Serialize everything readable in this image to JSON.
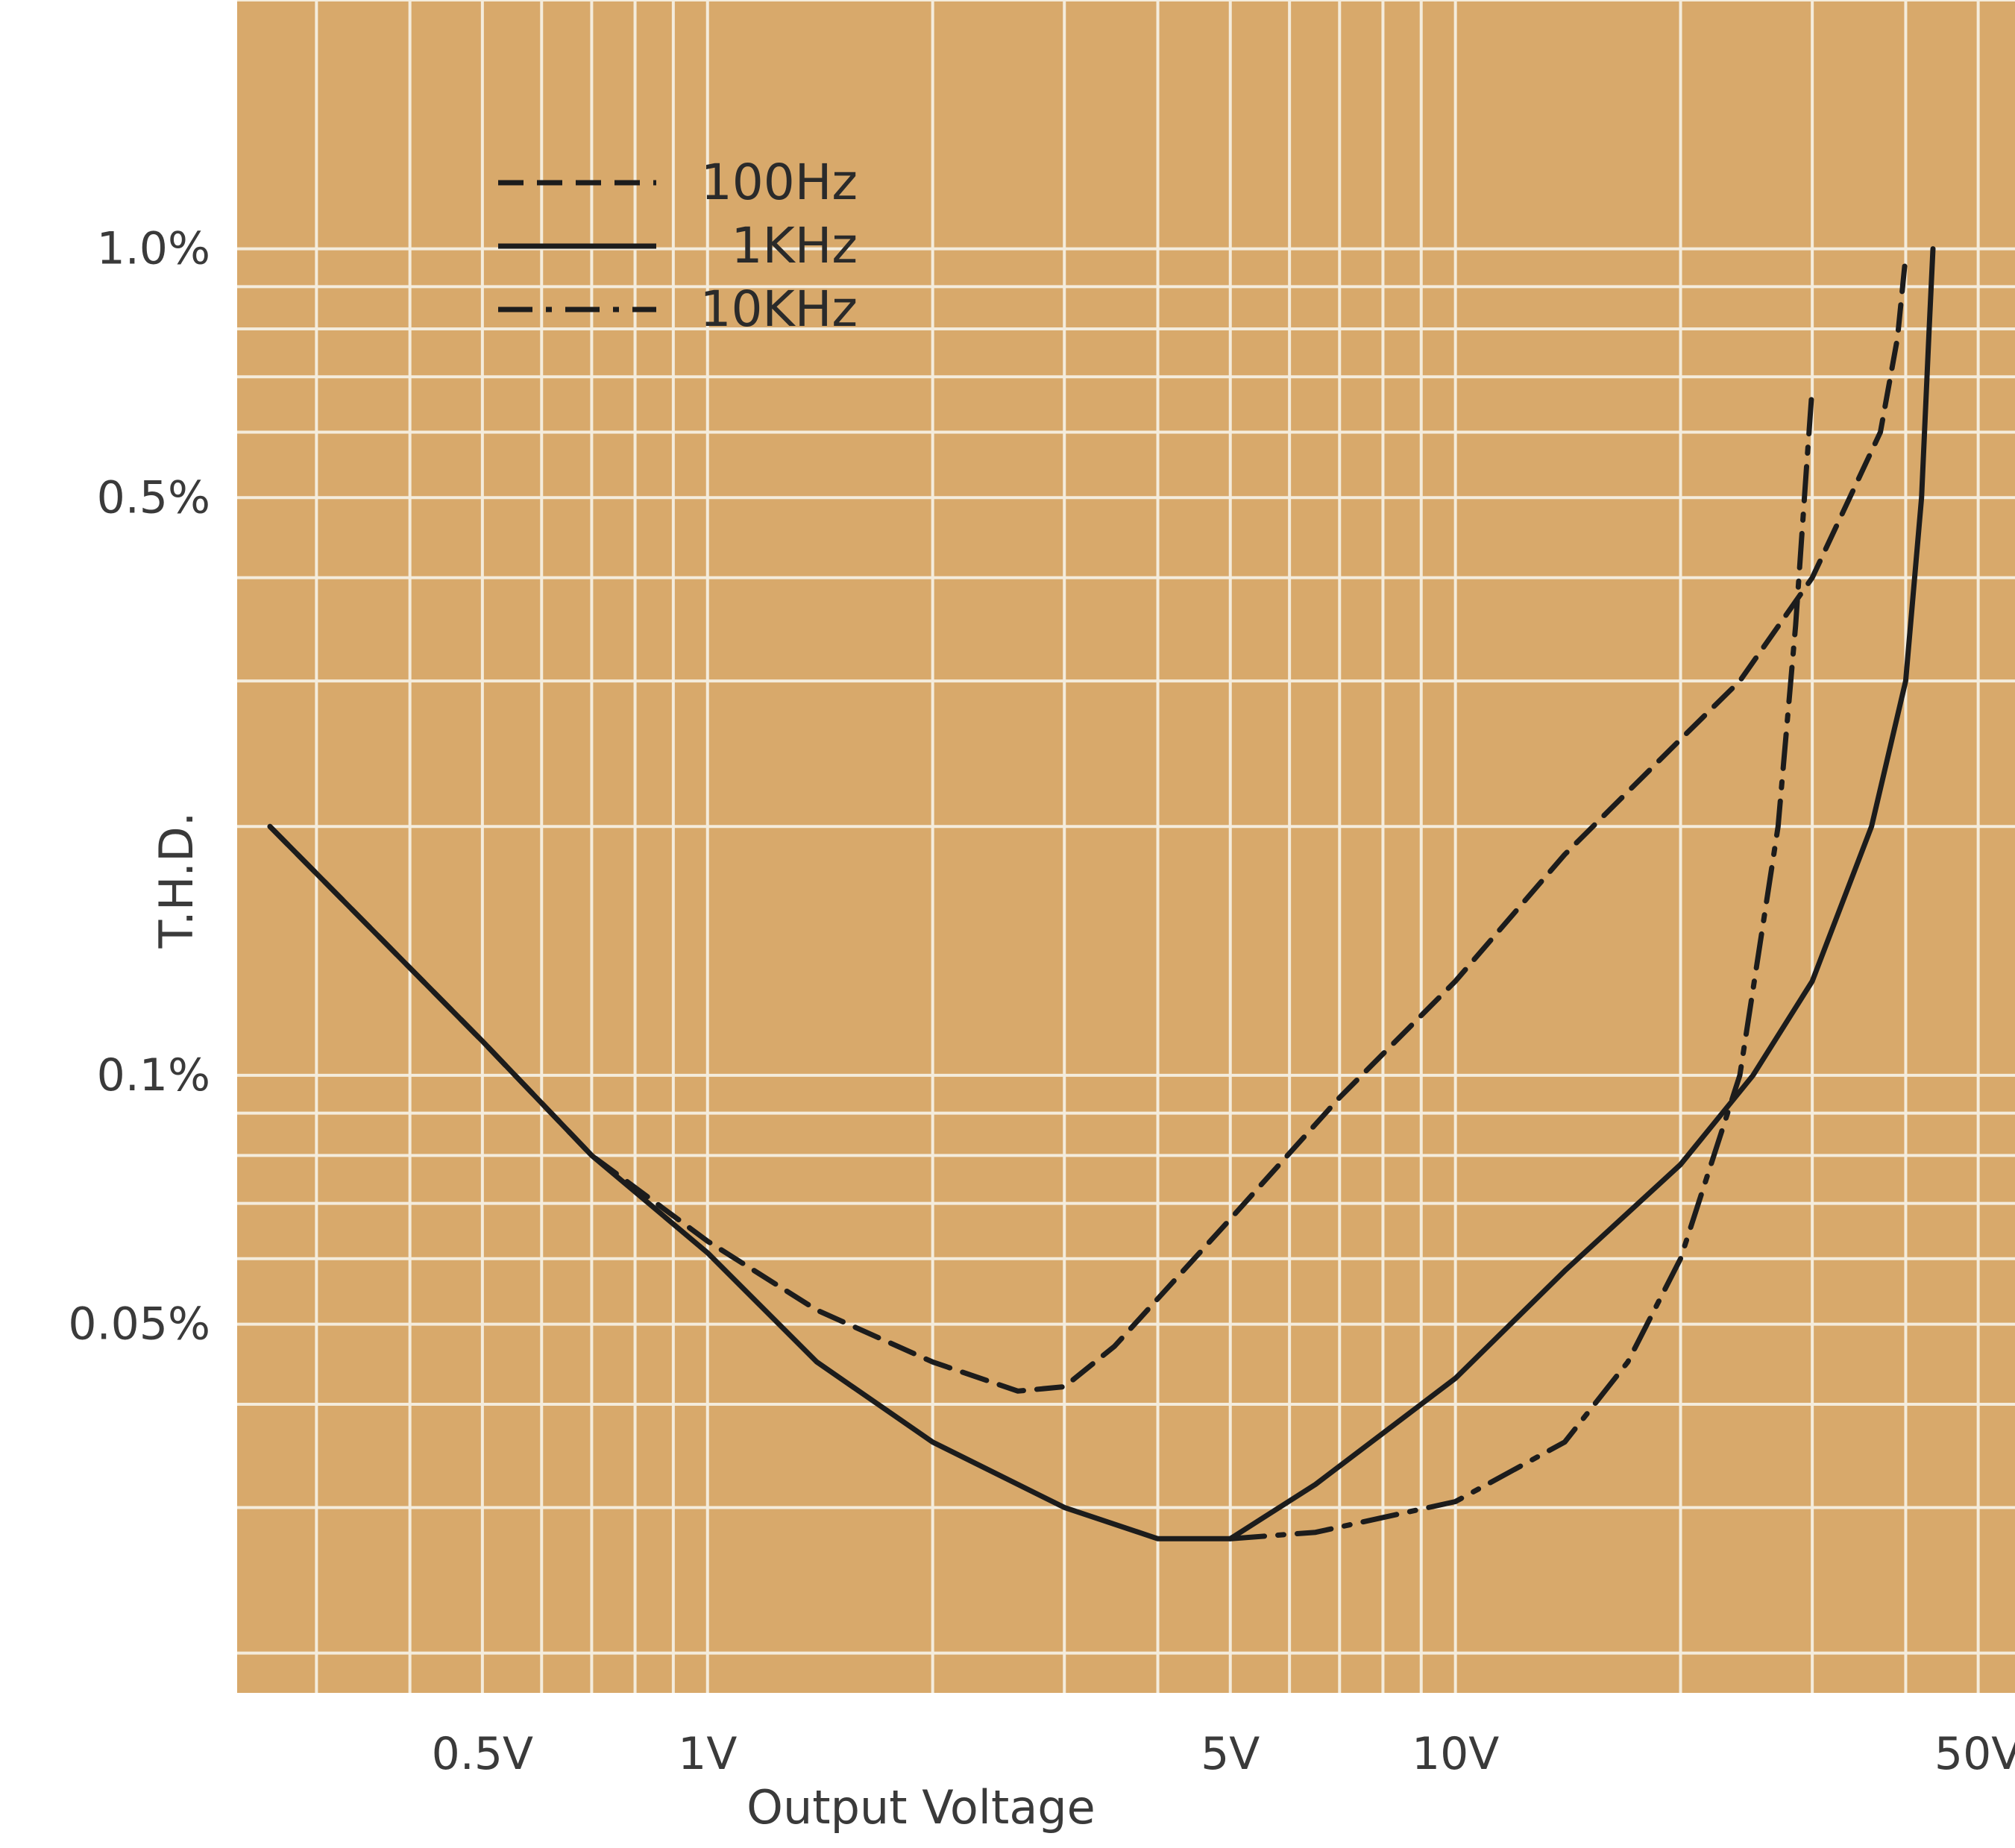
{
  "chart_data": {
    "type": "line",
    "title": "",
    "xlabel": "Output Voltage",
    "ylabel": "T.H.D.",
    "x_scale": "log",
    "y_scale": "log",
    "xlim": [
      0.235,
      56
    ],
    "ylim": [
      0.0179,
      2.0
    ],
    "x_ticks": [
      {
        "value": 0.5,
        "label": "0.5V"
      },
      {
        "value": 1,
        "label": "1V"
      },
      {
        "value": 5,
        "label": "5V"
      },
      {
        "value": 10,
        "label": "10V"
      },
      {
        "value": 50,
        "label": "50V"
      }
    ],
    "y_ticks": [
      {
        "value": 1.0,
        "label": "1.0%"
      },
      {
        "value": 0.5,
        "label": "0.5%"
      },
      {
        "value": 0.1,
        "label": "0.1%"
      },
      {
        "value": 0.05,
        "label": "0.05%"
      }
    ],
    "grid": true,
    "legend_position": "top-left",
    "colors": {
      "background": "#d8a96b",
      "grid": "#f4ecdc",
      "line": "#1c1c1c"
    },
    "series": [
      {
        "name": "100Hz",
        "style": "dashed",
        "points": [
          [
            0.26,
            0.2
          ],
          [
            0.5,
            0.11
          ],
          [
            0.7,
            0.08
          ],
          [
            1.0,
            0.063
          ],
          [
            1.4,
            0.052
          ],
          [
            2.0,
            0.045
          ],
          [
            2.6,
            0.0415
          ],
          [
            3.0,
            0.042
          ],
          [
            3.5,
            0.047
          ],
          [
            5.0,
            0.067
          ],
          [
            7.0,
            0.094
          ],
          [
            10.0,
            0.13
          ],
          [
            14.0,
            0.185
          ],
          [
            20.0,
            0.255
          ],
          [
            24.0,
            0.3
          ],
          [
            30.0,
            0.4
          ],
          [
            37.0,
            0.6
          ],
          [
            39.0,
            0.78
          ],
          [
            40.0,
            0.98
          ]
        ]
      },
      {
        "name": "1KHz",
        "style": "solid",
        "points": [
          [
            0.26,
            0.2
          ],
          [
            0.5,
            0.11
          ],
          [
            0.7,
            0.08
          ],
          [
            1.0,
            0.061
          ],
          [
            1.4,
            0.045
          ],
          [
            2.0,
            0.036
          ],
          [
            3.0,
            0.03
          ],
          [
            4.0,
            0.0275
          ],
          [
            5.0,
            0.0275
          ],
          [
            6.5,
            0.032
          ],
          [
            10.0,
            0.043
          ],
          [
            14.0,
            0.058
          ],
          [
            20.0,
            0.078
          ],
          [
            25.0,
            0.1
          ],
          [
            30.0,
            0.13
          ],
          [
            36.0,
            0.2
          ],
          [
            40.0,
            0.3
          ],
          [
            42.0,
            0.5
          ],
          [
            43.0,
            0.8
          ],
          [
            43.5,
            1.0
          ]
        ]
      },
      {
        "name": "10KHz",
        "style": "dash-dot",
        "points": [
          [
            5.0,
            0.0275
          ],
          [
            6.5,
            0.028
          ],
          [
            10.0,
            0.0305
          ],
          [
            14.0,
            0.036
          ],
          [
            17.0,
            0.045
          ],
          [
            20.0,
            0.06
          ],
          [
            24.0,
            0.1
          ],
          [
            27.0,
            0.2
          ],
          [
            28.5,
            0.35
          ],
          [
            29.5,
            0.55
          ],
          [
            30.0,
            0.68
          ]
        ]
      }
    ]
  }
}
